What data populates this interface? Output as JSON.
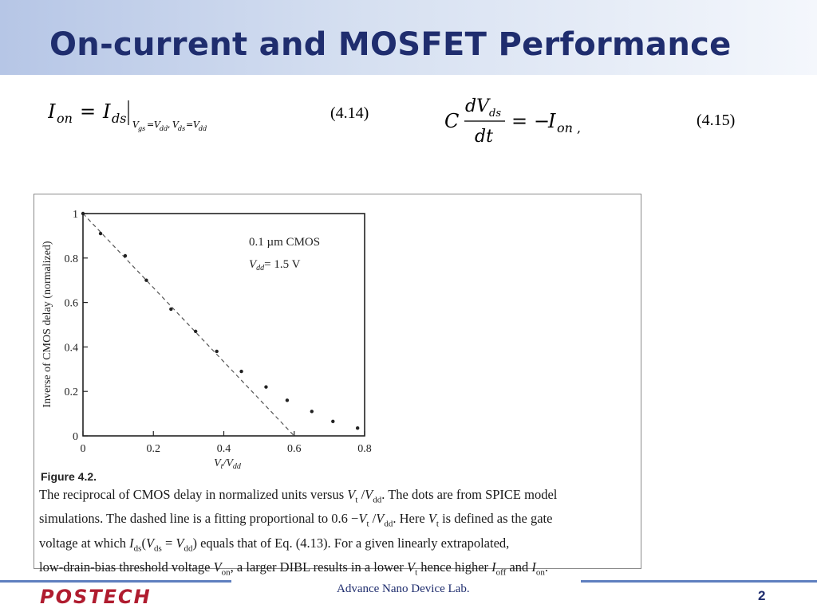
{
  "slide": {
    "title": "On-current and MOSFET Performance",
    "page_number": "2",
    "footer_lab": "Advance Nano Device Lab.",
    "logo_text": "POSTECH"
  },
  "equations": [
    {
      "tag": "(4.14)"
    },
    {
      "tag": "(4.15)"
    }
  ],
  "figure": {
    "label": "Figure 4.2.",
    "caption_lines": [
      "The reciprocal of CMOS delay in normalized units versus V<sub>t</sub> /V<sub>dd</sub>. The dots are from SPICE model",
      "simulations. The dashed line is a fitting proportional to 0.6 &minus;V<sub>t</sub> /V<sub>dd</sub>. Here V<sub>t</sub> is defined as the gate",
      "voltage at which I<sub>ds</sub>(V<sub>ds</sub> = V<sub>dd</sub>) equals that of Eq. (4.13). For a given linearly extrapolated,",
      "low-drain-bias threshold voltage V<sub>on</sub>, a larger DIBL results in a lower V<sub>t</sub> hence higher I<sub>off</sub> and I<sub>on</sub>."
    ]
  },
  "chart_data": {
    "type": "scatter",
    "title": "",
    "xlabel": "Vt/Vdd",
    "ylabel": "Inverse of CMOS delay (normalized)",
    "xlim": [
      0,
      0.8
    ],
    "ylim": [
      0,
      1
    ],
    "x_ticks": [
      "0",
      "0.2",
      "0.4",
      "0.6",
      "0.8"
    ],
    "y_ticks": [
      "0",
      "0.2",
      "0.4",
      "0.6",
      "0.8",
      "1"
    ],
    "annotation": [
      "0.1 µm CMOS",
      "Vdd = 1.5 V"
    ],
    "series": [
      {
        "kind": "points",
        "x": [
          0.0,
          0.05,
          0.12,
          0.18,
          0.25,
          0.32,
          0.38,
          0.45,
          0.52,
          0.58,
          0.65,
          0.71,
          0.78
        ],
        "y": [
          1.0,
          0.91,
          0.81,
          0.7,
          0.57,
          0.47,
          0.38,
          0.29,
          0.22,
          0.16,
          0.11,
          0.065,
          0.035
        ]
      },
      {
        "kind": "dashed-fit",
        "x": [
          0.0,
          0.6
        ],
        "y": [
          1.0,
          0.0
        ]
      }
    ]
  }
}
